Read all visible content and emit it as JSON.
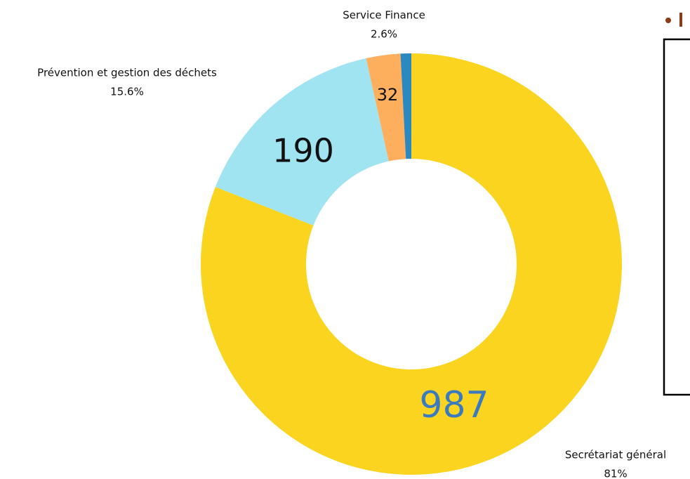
{
  "chart_data": {
    "type": "donut",
    "categories": [
      "Secrétariat général",
      "Prévention et gestion des déchets",
      "Service Finance",
      null
    ],
    "values": [
      987,
      190,
      32,
      10
    ],
    "percent_labels": [
      "81%",
      "15.6%",
      "2.6%",
      null
    ],
    "colors": [
      "#fad41f",
      "#a0e4f2",
      "#fdaf5d",
      "#2b88c0"
    ]
  }
}
